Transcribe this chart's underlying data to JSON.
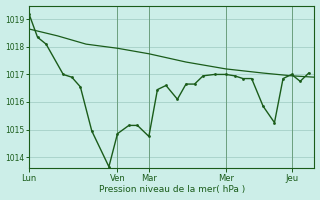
{
  "background_color": "#cceee8",
  "line_color": "#1a5c1a",
  "grid_color": "#aad4cc",
  "xlabel": "Pression niveau de la mer( hPa )",
  "ylim": [
    1013.6,
    1019.5
  ],
  "yticks": [
    1014,
    1015,
    1016,
    1017,
    1018,
    1019
  ],
  "day_labels": [
    "Lun",
    "Ven",
    "Mar",
    "Mer",
    "Jeu"
  ],
  "day_positions": [
    0.0,
    0.31,
    0.42,
    0.69,
    0.92
  ],
  "xmax": 1.0,
  "series1_x": [
    0.0,
    0.03,
    0.06,
    0.12,
    0.15,
    0.18,
    0.22,
    0.28,
    0.31,
    0.35,
    0.38,
    0.42,
    0.45,
    0.48,
    0.52,
    0.55,
    0.58,
    0.61,
    0.65,
    0.69,
    0.72,
    0.75,
    0.78,
    0.82,
    0.86,
    0.89,
    0.92,
    0.95,
    0.98
  ],
  "series1_y": [
    1019.2,
    1018.35,
    1018.1,
    1017.0,
    1016.9,
    1016.55,
    1014.95,
    1013.65,
    1014.85,
    1015.15,
    1015.15,
    1014.75,
    1016.45,
    1016.6,
    1016.1,
    1016.65,
    1016.65,
    1016.95,
    1017.0,
    1017.0,
    1016.95,
    1016.85,
    1016.85,
    1015.85,
    1015.25,
    1016.85,
    1017.0,
    1016.75,
    1017.05
  ],
  "series2_x": [
    0.0,
    0.1,
    0.2,
    0.31,
    0.42,
    0.55,
    0.69,
    0.82,
    0.92,
    1.0
  ],
  "series2_y": [
    1018.65,
    1018.4,
    1018.1,
    1017.95,
    1017.75,
    1017.45,
    1017.2,
    1017.05,
    1016.95,
    1016.9
  ],
  "figsize": [
    3.2,
    2.0
  ],
  "dpi": 100
}
